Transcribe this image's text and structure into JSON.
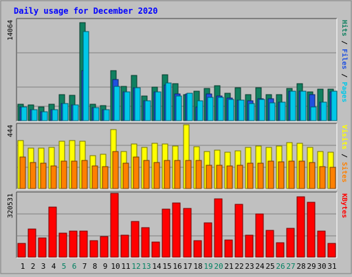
{
  "chart_data": {
    "type": "bar",
    "title": "Daily usage for December 2020",
    "categories": [
      "1",
      "2",
      "3",
      "4",
      "5",
      "6",
      "7",
      "8",
      "9",
      "10",
      "11",
      "12",
      "13",
      "14",
      "15",
      "16",
      "17",
      "18",
      "19",
      "20",
      "21",
      "22",
      "23",
      "24",
      "25",
      "26",
      "27",
      "28",
      "29",
      "30",
      "31"
    ],
    "weekend_days": [
      "5",
      "6",
      "12",
      "13",
      "19",
      "20",
      "26",
      "27"
    ],
    "panels": [
      {
        "name": "top",
        "ymax": 14064,
        "ymax_label": "14064",
        "right_label_parts": [
          {
            "text": "Pages",
            "color": "#00c8e8"
          },
          {
            "text": " / ",
            "color": "#000000"
          },
          {
            "text": "Files",
            "color": "#2050e0"
          },
          {
            "text": " / ",
            "color": "#000000"
          },
          {
            "text": "Hits",
            "color": "#108060"
          }
        ],
        "series": [
          {
            "name": "Hits",
            "color": "#108060",
            "values": [
              2350,
              2200,
              1900,
              2300,
              3700,
              3600,
              13800,
              2350,
              2100,
              7000,
              4800,
              6400,
              3500,
              4700,
              6500,
              5200,
              3700,
              4100,
              4500,
              4900,
              3900,
              4600,
              3700,
              4600,
              3700,
              3700,
              4500,
              5200,
              4000,
              4400,
              4400
            ]
          },
          {
            "name": "Files",
            "color": "#2050e0",
            "values": [
              1900,
              1500,
              1300,
              1500,
              2400,
              2200,
              7000,
              1800,
              1500,
              5800,
              4000,
              4600,
              2800,
              4000,
              5000,
              3800,
              3800,
              1900,
              3800,
              3500,
              3200,
              2900,
              2800,
              3100,
              3100,
              2600,
              4100,
              4100,
              3700,
              2600,
              4000
            ]
          },
          {
            "name": "Pages",
            "color": "#00c8e8",
            "values": [
              1900,
              1500,
              1300,
              1500,
              2400,
              2200,
              12500,
              1800,
              1500,
              4800,
              4000,
              4600,
              2800,
              4000,
              5300,
              3500,
              3900,
              2800,
              3300,
              3300,
              3000,
              2900,
              2400,
              3000,
              2500,
              2600,
              4100,
              4100,
              1900,
              2600,
              4100
            ]
          }
        ]
      },
      {
        "name": "middle",
        "ymax": 444,
        "ymax_label": "444",
        "right_label_parts": [
          {
            "text": "Sites",
            "color": "#ff8000"
          },
          {
            "text": " / ",
            "color": "#000000"
          },
          {
            "text": "Visits",
            "color": "#ffff00"
          }
        ],
        "series": [
          {
            "name": "Visits",
            "color": "#ffff00",
            "values": [
              340,
              285,
              285,
              290,
              335,
              340,
              335,
              230,
              240,
              415,
              260,
              315,
              290,
              320,
              315,
              300,
              450,
              295,
              260,
              270,
              255,
              265,
              290,
              300,
              290,
              300,
              325,
              320,
              290,
              260,
              255
            ]
          },
          {
            "name": "Sites",
            "color": "#ff8000",
            "values": [
              220,
              185,
              180,
              160,
              195,
              195,
              200,
              160,
              155,
              260,
              180,
              220,
              200,
              185,
              200,
              200,
              200,
              200,
              165,
              165,
              160,
              165,
              180,
              180,
              195,
              190,
              195,
              195,
              185,
              155,
              150
            ]
          }
        ]
      },
      {
        "name": "bottom",
        "ymax": 320531,
        "ymax_label": "320531",
        "right_label_parts": [
          {
            "text": "KBytes",
            "color": "#ff0000"
          }
        ],
        "series": [
          {
            "name": "KBytes",
            "color": "#ff0000",
            "values": [
              70000,
              143000,
              96000,
              254000,
              123000,
              132000,
              132000,
              83000,
              106000,
              325000,
              113000,
              180000,
              150000,
              77000,
              244000,
              276000,
              246000,
              84000,
              173000,
              296000,
              86000,
              270000,
              113000,
              218000,
              135000,
              72000,
              147000,
              308000,
              278000,
              132000,
              71000
            ]
          }
        ]
      }
    ],
    "colors": {
      "background": "#c0c0c0",
      "plot_background": "#c0c0c0",
      "title": "#0000ff",
      "weekday_label": "#000000",
      "weekend_label": "#008060"
    }
  }
}
